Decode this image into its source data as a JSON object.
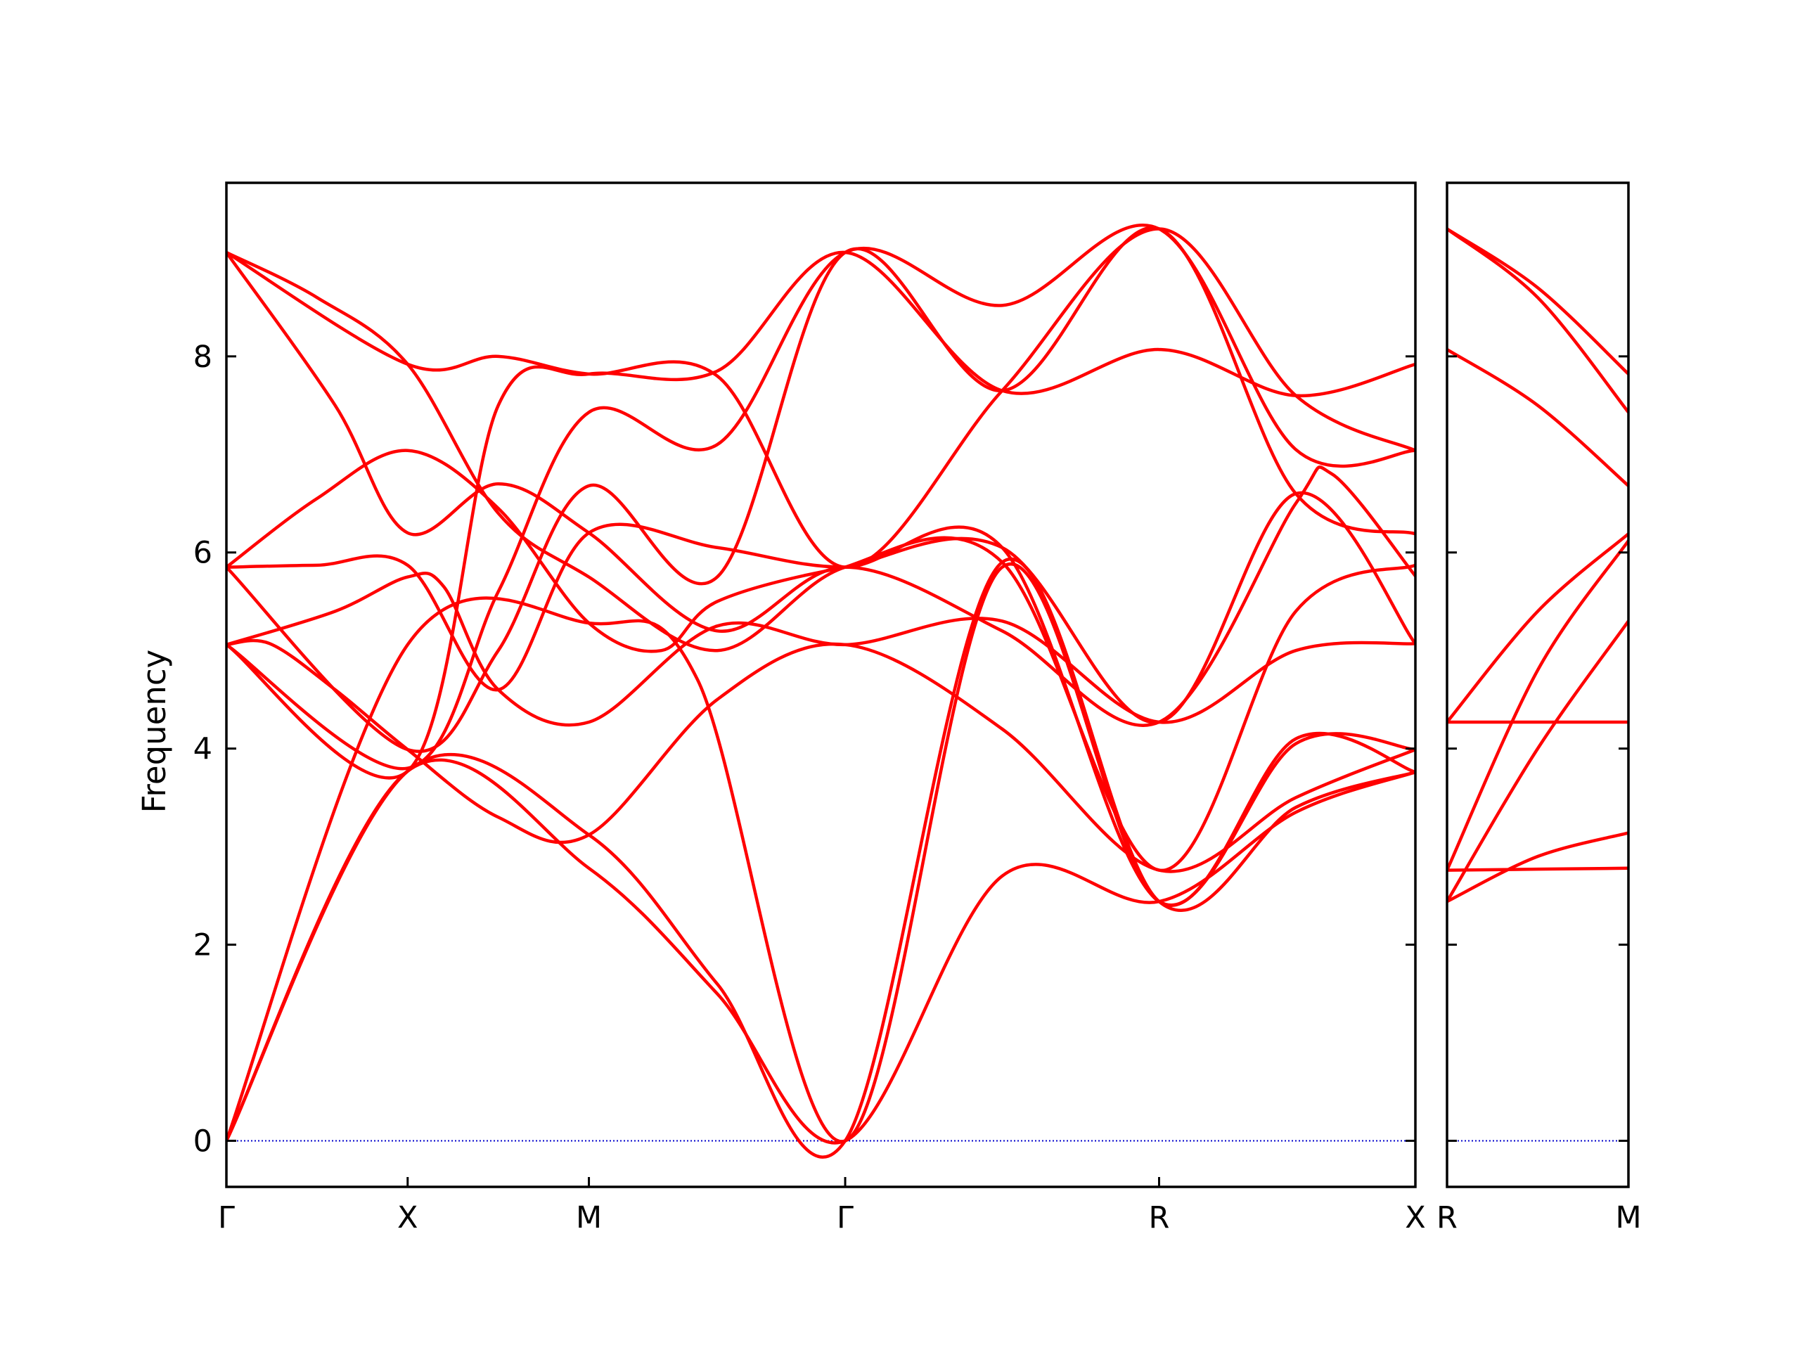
{
  "chart_data": {
    "type": "line",
    "title": "",
    "ylabel": "Frequency",
    "xlabel": "",
    "ylim": [
      -0.47,
      9.77
    ],
    "yticks": [
      0,
      2,
      4,
      6,
      8
    ],
    "ytick_labels": [
      "0",
      "2",
      "4",
      "6",
      "8"
    ],
    "grid": false,
    "colors": {
      "bands": "#ff0000",
      "zero_line": "#0000cc",
      "axes": "#000000"
    },
    "panels": [
      {
        "path": "Γ-X-M-Γ-R-X",
        "xticks": [
          0,
          0.5,
          1.0,
          1.707,
          2.573,
          3.28
        ],
        "xtick_labels": [
          "Γ",
          "X",
          "M",
          "Γ",
          "R",
          "X"
        ],
        "xlim": [
          0,
          3.28
        ],
        "series": [
          {
            "x": [
              0,
              0.5,
              1.0,
              1.354,
              1.707,
              2.14,
              2.573,
              2.95,
              3.28
            ],
            "values": [
              0,
              3.77,
              2.78,
              1.5,
              0,
              2.7,
              2.44,
              3.35,
              3.76
            ]
          },
          {
            "x": [
              0,
              0.5,
              1.0,
              1.354,
              1.707,
              2.14,
              2.573,
              2.95,
              3.28
            ],
            "values": [
              0,
              3.77,
              3.12,
              1.6,
              0,
              5.9,
              2.44,
              3.4,
              3.76
            ]
          },
          {
            "x": [
              0,
              0.5,
              1.0,
              1.3,
              1.707,
              2.14,
              2.573,
              2.95,
              3.28
            ],
            "values": [
              0,
              5.06,
              5.28,
              4.7,
              0,
              5.85,
              2.44,
              4.05,
              3.99
            ]
          },
          {
            "x": [
              0,
              0.12,
              0.3,
              0.5,
              0.75,
              1.0,
              1.354,
              1.707,
              2.14,
              2.573,
              2.95,
              3.28
            ],
            "values": [
              5.06,
              5.07,
              4.6,
              3.99,
              3.3,
              3.12,
              4.5,
              5.06,
              4.2,
              2.76,
              3.5,
              3.99
            ]
          },
          {
            "x": [
              0,
              0.3,
              0.5,
              0.6,
              0.75,
              1.0,
              1.354,
              1.707,
              2.14,
              2.573,
              2.95,
              3.28
            ],
            "values": [
              5.06,
              5.4,
              5.75,
              5.65,
              4.6,
              4.27,
              5.25,
              5.06,
              5.3,
              4.27,
              5.0,
              5.07
            ]
          },
          {
            "x": [
              0,
              0.25,
              0.5,
              0.75,
              1.0,
              1.354,
              1.707,
              2.14,
              2.573,
              2.95,
              3.28
            ],
            "values": [
              5.85,
              5.87,
              5.87,
              4.6,
              6.2,
              6.05,
              5.85,
              6.05,
              2.44,
              4.1,
              3.76
            ]
          },
          {
            "x": [
              0,
              0.25,
              0.5,
              0.75,
              1.0,
              1.2,
              1.354,
              1.707,
              2.14,
              2.573,
              2.95,
              3.28
            ],
            "values": [
              5.85,
              6.55,
              7.04,
              6.45,
              5.28,
              5.0,
              5.5,
              5.85,
              6.05,
              4.27,
              6.6,
              5.07
            ]
          },
          {
            "x": [
              0,
              0.3,
              0.5,
              0.75,
              1.0,
              1.354,
              1.707,
              2.14,
              2.573,
              2.95,
              3.05,
              3.28
            ],
            "values": [
              9.06,
              7.5,
              6.2,
              6.7,
              6.2,
              5.2,
              5.85,
              5.2,
              4.27,
              6.5,
              6.8,
              5.76
            ]
          },
          {
            "x": [
              0,
              0.25,
              0.5,
              0.75,
              1.0,
              1.354,
              1.707,
              2.14,
              2.573,
              2.95,
              3.28
            ],
            "values": [
              9.06,
              8.6,
              7.92,
              6.4,
              5.75,
              5.0,
              5.85,
              5.9,
              2.76,
              5.4,
              5.87
            ]
          },
          {
            "x": [
              0,
              0.5,
              0.75,
              1.0,
              1.354,
              1.707,
              2.14,
              2.573,
              2.95,
              3.28
            ],
            "values": [
              5.85,
              3.99,
              5.0,
              6.68,
              5.75,
              9.06,
              7.65,
              9.3,
              6.6,
              6.19
            ]
          },
          {
            "x": [
              0,
              0.5,
              0.75,
              1.0,
              1.354,
              1.707,
              2.14,
              2.573,
              2.95,
              3.28
            ],
            "values": [
              5.06,
              3.8,
              5.6,
              7.43,
              7.1,
              9.06,
              8.52,
              9.3,
              7.05,
              7.04
            ]
          },
          {
            "x": [
              0,
              0.5,
              0.75,
              1.0,
              1.354,
              1.707,
              2.14,
              2.573,
              2.95,
              3.28
            ],
            "values": [
              5.06,
              3.77,
              7.5,
              7.82,
              7.85,
              9.06,
              7.65,
              8.07,
              7.6,
              7.92
            ]
          },
          {
            "x": [
              0,
              0.5,
              0.75,
              1.0,
              1.354,
              1.707,
              2.14,
              2.573,
              2.95,
              3.28
            ],
            "values": [
              9.06,
              7.92,
              8.0,
              7.82,
              7.8,
              5.85,
              7.65,
              9.3,
              7.6,
              7.04
            ]
          }
        ]
      },
      {
        "path": "R-M",
        "xticks": [
          0,
          0.5
        ],
        "xtick_labels": [
          "R",
          "M"
        ],
        "xlim": [
          0,
          0.5
        ],
        "series": [
          {
            "x": [
              0,
              0.25,
              0.5
            ],
            "values": [
              2.44,
              2.9,
              3.14
            ]
          },
          {
            "x": [
              0,
              0.25,
              0.5
            ],
            "values": [
              2.76,
              2.77,
              2.78
            ]
          },
          {
            "x": [
              0,
              0.25,
              0.5
            ],
            "values": [
              2.44,
              4.0,
              5.3
            ]
          },
          {
            "x": [
              0,
              0.25,
              0.5
            ],
            "values": [
              2.76,
              4.8,
              6.12
            ]
          },
          {
            "x": [
              0,
              0.25,
              0.5
            ],
            "values": [
              4.27,
              4.27,
              4.27
            ]
          },
          {
            "x": [
              0,
              0.25,
              0.5
            ],
            "values": [
              4.27,
              5.4,
              6.19
            ]
          },
          {
            "x": [
              0,
              0.25,
              0.5
            ],
            "values": [
              8.07,
              7.5,
              6.68
            ]
          },
          {
            "x": [
              0,
              0.25,
              0.5
            ],
            "values": [
              9.3,
              8.6,
              7.43
            ]
          },
          {
            "x": [
              0,
              0.25,
              0.5
            ],
            "values": [
              9.3,
              8.7,
              7.82
            ]
          }
        ]
      }
    ]
  }
}
